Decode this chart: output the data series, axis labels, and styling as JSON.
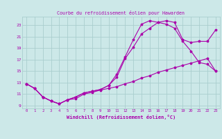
{
  "title": "Courbe du refroidissement éolien pour Hawarden",
  "xlabel": "Windchill (Refroidissement éolien,°C)",
  "bg_color": "#cce8e8",
  "grid_color": "#aacece",
  "line_color": "#aa00aa",
  "xlim": [
    -0.5,
    23.5
  ],
  "ylim": [
    8.5,
    24.5
  ],
  "xticks": [
    0,
    1,
    2,
    3,
    4,
    5,
    6,
    7,
    8,
    9,
    10,
    11,
    12,
    13,
    14,
    15,
    16,
    17,
    18,
    19,
    20,
    21,
    22,
    23
  ],
  "yticks": [
    9,
    11,
    13,
    15,
    17,
    19,
    21,
    23
  ],
  "line1_x": [
    0,
    1,
    2,
    3,
    4,
    5,
    6,
    7,
    8,
    9,
    10,
    11,
    12,
    13,
    14,
    15,
    16,
    17,
    18,
    19,
    20,
    21,
    22,
    23
  ],
  "line1_y": [
    12.8,
    12.0,
    10.5,
    9.8,
    9.3,
    10.0,
    10.2,
    11.0,
    11.3,
    11.7,
    12.0,
    12.3,
    12.8,
    13.2,
    13.8,
    14.2,
    14.8,
    15.2,
    15.6,
    16.0,
    16.4,
    16.8,
    17.2,
    15.0
  ],
  "line2_x": [
    0,
    1,
    2,
    3,
    4,
    5,
    6,
    7,
    8,
    9,
    10,
    11,
    12,
    13,
    14,
    15,
    16,
    17,
    18,
    19,
    20,
    21,
    22,
    23
  ],
  "line2_y": [
    12.8,
    12.0,
    10.5,
    9.8,
    9.3,
    10.0,
    10.5,
    11.2,
    11.5,
    11.8,
    12.5,
    14.0,
    17.2,
    19.2,
    21.5,
    22.5,
    23.5,
    23.8,
    23.5,
    20.5,
    20.0,
    20.2,
    20.2,
    22.2
  ],
  "line3_x": [
    0,
    1,
    2,
    3,
    4,
    5,
    6,
    7,
    8,
    9,
    10,
    11,
    12,
    13,
    14,
    15,
    16,
    17,
    18,
    19,
    20,
    21,
    22,
    23
  ],
  "line3_y": [
    12.8,
    12.0,
    10.5,
    9.8,
    9.3,
    10.0,
    10.5,
    11.2,
    11.5,
    11.8,
    12.5,
    14.5,
    17.5,
    20.5,
    23.2,
    23.8,
    23.5,
    23.2,
    22.5,
    20.2,
    18.5,
    16.5,
    16.2,
    15.0
  ]
}
